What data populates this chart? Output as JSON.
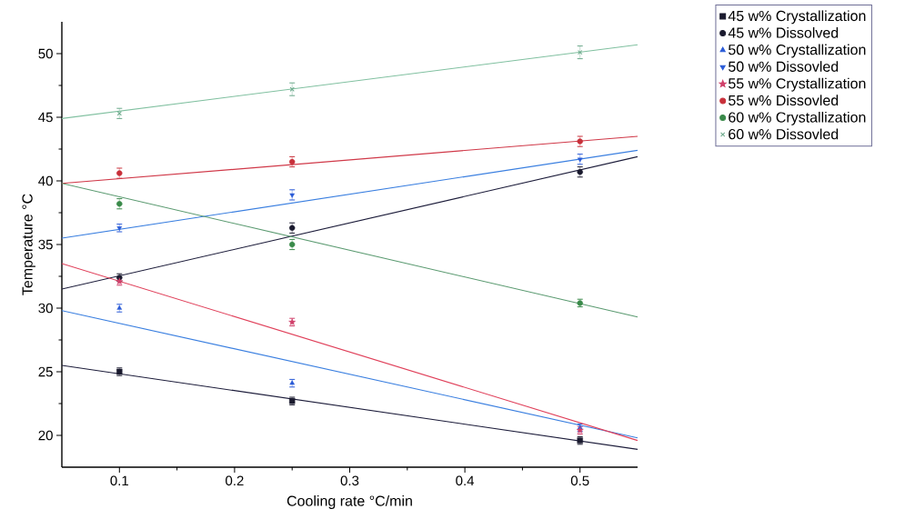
{
  "chart_data": {
    "type": "scatter",
    "xlabel": "Cooling rate °C/min",
    "ylabel": "Temperature °C",
    "xlim": [
      0.05,
      0.55
    ],
    "xticks": [
      0.1,
      0.2,
      0.3,
      0.4,
      0.5
    ],
    "ylim": [
      17.5,
      52.5
    ],
    "yticks": [
      20,
      25,
      30,
      35,
      40,
      45,
      50
    ],
    "grid": false,
    "legend": "top right",
    "series": [
      {
        "name": "45 w% Crystallization",
        "color": "#1a1a2e",
        "marker": "square",
        "x": [
          0.1,
          0.25,
          0.5
        ],
        "values": [
          25.0,
          22.7,
          19.6
        ],
        "errors": [
          0.3,
          0.3,
          0.3
        ]
      },
      {
        "name": "45 w% Dissolved",
        "color": "#1a1a2e",
        "marker": "circle",
        "x": [
          0.1,
          0.25,
          0.5
        ],
        "values": [
          32.4,
          36.3,
          40.7
        ],
        "errors": [
          0.3,
          0.4,
          0.4
        ]
      },
      {
        "name": "50 w% Crystallization",
        "color": "#2a5bd7",
        "marker": "triangle",
        "x": [
          0.1,
          0.25,
          0.5
        ],
        "values": [
          30.0,
          24.1,
          20.6
        ],
        "errors": [
          0.3,
          0.3,
          0.3
        ]
      },
      {
        "name": "50 w% Dissovled",
        "color": "#2a5bd7",
        "marker": "triangle-down",
        "x": [
          0.1,
          0.25,
          0.5
        ],
        "values": [
          36.3,
          38.9,
          41.7
        ],
        "errors": [
          0.3,
          0.4,
          0.4
        ]
      },
      {
        "name": "55 w% Crystallization",
        "color": "#d0406a",
        "marker": "star",
        "x": [
          0.1,
          0.25,
          0.5
        ],
        "values": [
          32.1,
          28.9,
          20.4
        ],
        "errors": [
          0.3,
          0.3,
          0.3
        ]
      },
      {
        "name": "55 w% Dissovled",
        "color": "#c8303a",
        "marker": "circle",
        "x": [
          0.1,
          0.25,
          0.5
        ],
        "values": [
          40.6,
          41.5,
          43.1
        ],
        "errors": [
          0.4,
          0.4,
          0.4
        ]
      },
      {
        "name": "60 w% Crystallization",
        "color": "#3a8a4a",
        "marker": "circle",
        "x": [
          0.1,
          0.25,
          0.5
        ],
        "values": [
          38.2,
          35.0,
          30.4
        ],
        "errors": [
          0.4,
          0.4,
          0.3
        ]
      },
      {
        "name": "60 w% Dissovled",
        "color": "#6aa88a",
        "marker": "cross",
        "x": [
          0.1,
          0.25,
          0.5
        ],
        "values": [
          45.3,
          47.2,
          50.1
        ],
        "errors": [
          0.4,
          0.5,
          0.5
        ]
      },
      {
        "type": "line",
        "color": "#1c1c3a",
        "marker": "none",
        "x": [
          0.05,
          0.55
        ],
        "values": [
          25.5,
          18.9
        ]
      },
      {
        "type": "line",
        "color": "#1c1c3a",
        "marker": "none",
        "x": [
          0.05,
          0.55
        ],
        "values": [
          31.5,
          41.9
        ]
      },
      {
        "type": "line",
        "color": "#3a7fe0",
        "marker": "none",
        "x": [
          0.05,
          0.55
        ],
        "values": [
          29.8,
          19.8
        ]
      },
      {
        "type": "line",
        "color": "#3a7fe0",
        "marker": "none",
        "x": [
          0.05,
          0.55
        ],
        "values": [
          35.5,
          42.4
        ]
      },
      {
        "type": "line",
        "color": "#e0405a",
        "marker": "none",
        "x": [
          0.05,
          0.55
        ],
        "values": [
          33.5,
          19.6
        ]
      },
      {
        "type": "line",
        "color": "#d03848",
        "marker": "none",
        "x": [
          0.05,
          0.55
        ],
        "values": [
          39.8,
          43.5
        ]
      },
      {
        "type": "line",
        "color": "#5a9a70",
        "marker": "none",
        "x": [
          0.05,
          0.55
        ],
        "values": [
          39.8,
          29.3
        ]
      },
      {
        "type": "line",
        "color": "#80c0a0",
        "marker": "none",
        "x": [
          0.05,
          0.55
        ],
        "values": [
          44.9,
          50.7
        ]
      }
    ]
  }
}
